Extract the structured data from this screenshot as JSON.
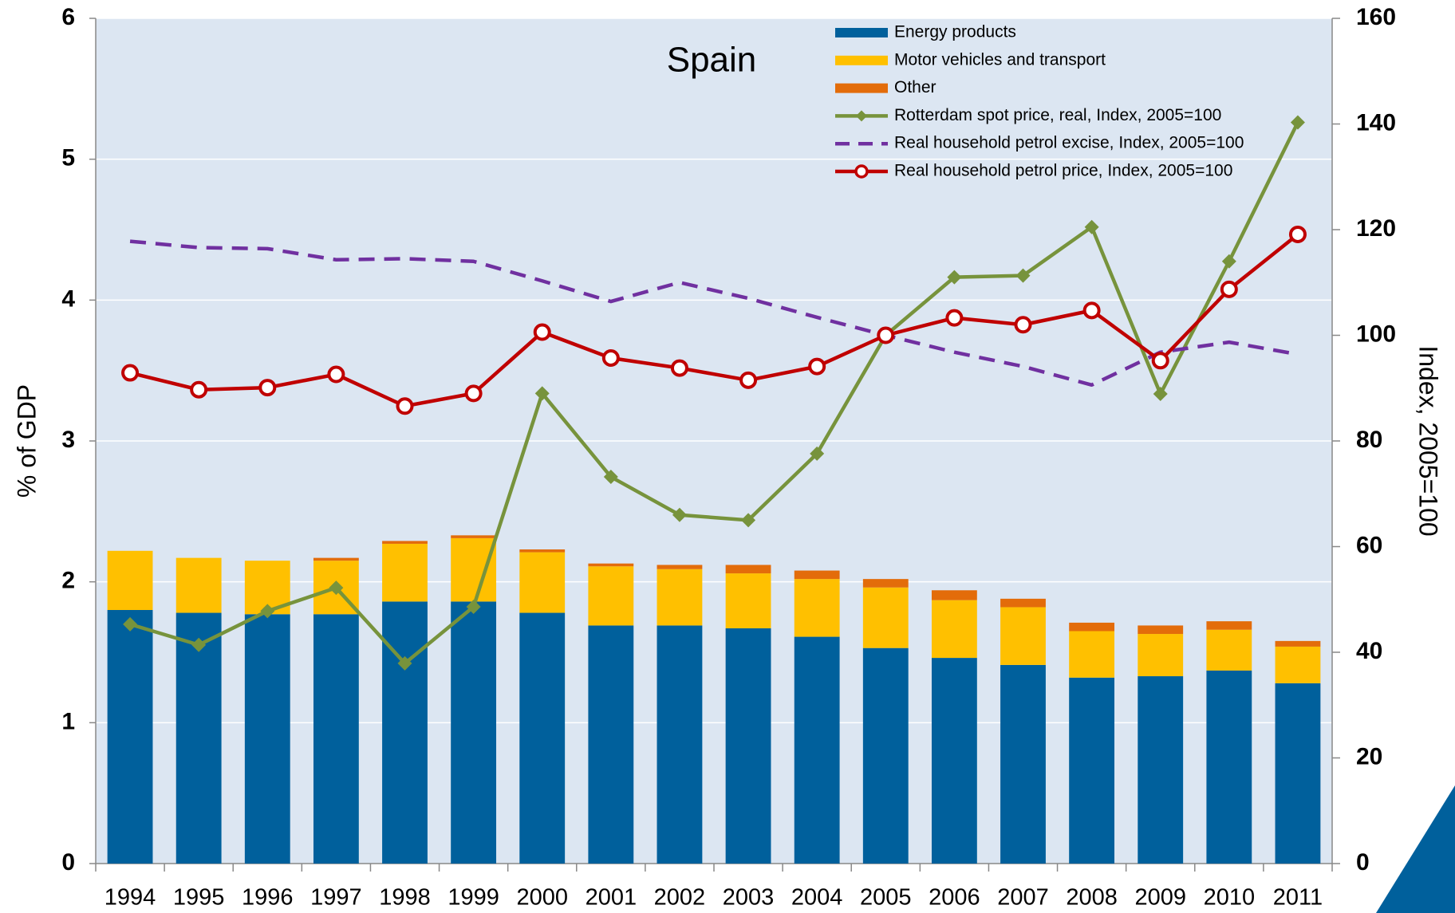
{
  "chart_data": {
    "type": "bar",
    "title": "Spain",
    "ylabel": "% of GDP",
    "y2label": "Index, 2005=100",
    "categories": [
      "1994",
      "1995",
      "1996",
      "1997",
      "1998",
      "1999",
      "2000",
      "2001",
      "2002",
      "2003",
      "2004",
      "2005",
      "2006",
      "2007",
      "2008",
      "2009",
      "2010",
      "2011"
    ],
    "ylim": [
      0,
      6
    ],
    "yticks": [
      0,
      1,
      2,
      3,
      4,
      5,
      6
    ],
    "y2lim": [
      0,
      160
    ],
    "y2ticks": [
      0,
      20,
      40,
      60,
      80,
      100,
      120,
      140,
      160
    ],
    "grid": true,
    "stacked": true,
    "series": [
      {
        "name": "Energy products",
        "type": "bar",
        "color": "#00609c",
        "values": [
          1.8,
          1.78,
          1.77,
          1.77,
          1.86,
          1.86,
          1.78,
          1.69,
          1.69,
          1.67,
          1.61,
          1.53,
          1.46,
          1.41,
          1.32,
          1.33,
          1.37,
          1.28
        ]
      },
      {
        "name": "Motor vehicles and transport",
        "type": "bar",
        "color": "#ffc000",
        "values": [
          0.42,
          0.39,
          0.38,
          0.38,
          0.41,
          0.45,
          0.43,
          0.42,
          0.4,
          0.39,
          0.41,
          0.43,
          0.41,
          0.41,
          0.33,
          0.3,
          0.29,
          0.26
        ]
      },
      {
        "name": "Other",
        "type": "bar",
        "color": "#e36c0a",
        "values": [
          0,
          0,
          0,
          0.02,
          0.02,
          0.02,
          0.02,
          0.02,
          0.03,
          0.06,
          0.06,
          0.06,
          0.07,
          0.06,
          0.06,
          0.06,
          0.06,
          0.04
        ]
      },
      {
        "name": "Rotterdam spot price, real, Index, 2005=100",
        "type": "line",
        "axis": "y2",
        "color": "#77933c",
        "marker": "diamond",
        "values": [
          45.3,
          41.4,
          47.8,
          52.2,
          37.9,
          48.6,
          89.0,
          73.2,
          66.0,
          65.0,
          77.6,
          100,
          111,
          111.3,
          120.5,
          88.9,
          114,
          140.3
        ]
      },
      {
        "name": "Real household petrol excise, Index, 2005=100",
        "type": "line",
        "axis": "y2",
        "color": "#7030a0",
        "dash": true,
        "values": [
          117.8,
          116.6,
          116.4,
          114.3,
          114.5,
          114,
          110.3,
          106.4,
          110,
          107,
          103.4,
          100,
          96.8,
          94.1,
          90.6,
          96.8,
          98.7,
          96.4
        ]
      },
      {
        "name": "Real household petrol price, Index, 2005=100",
        "type": "line",
        "axis": "y2",
        "color": "#c00000",
        "marker": "circle",
        "values": [
          92.9,
          89.7,
          90.1,
          92.6,
          86.6,
          89.0,
          100.6,
          95.7,
          93.8,
          91.5,
          94.1,
          100,
          103.3,
          102,
          104.7,
          95.2,
          108.7,
          119.1
        ]
      }
    ]
  }
}
